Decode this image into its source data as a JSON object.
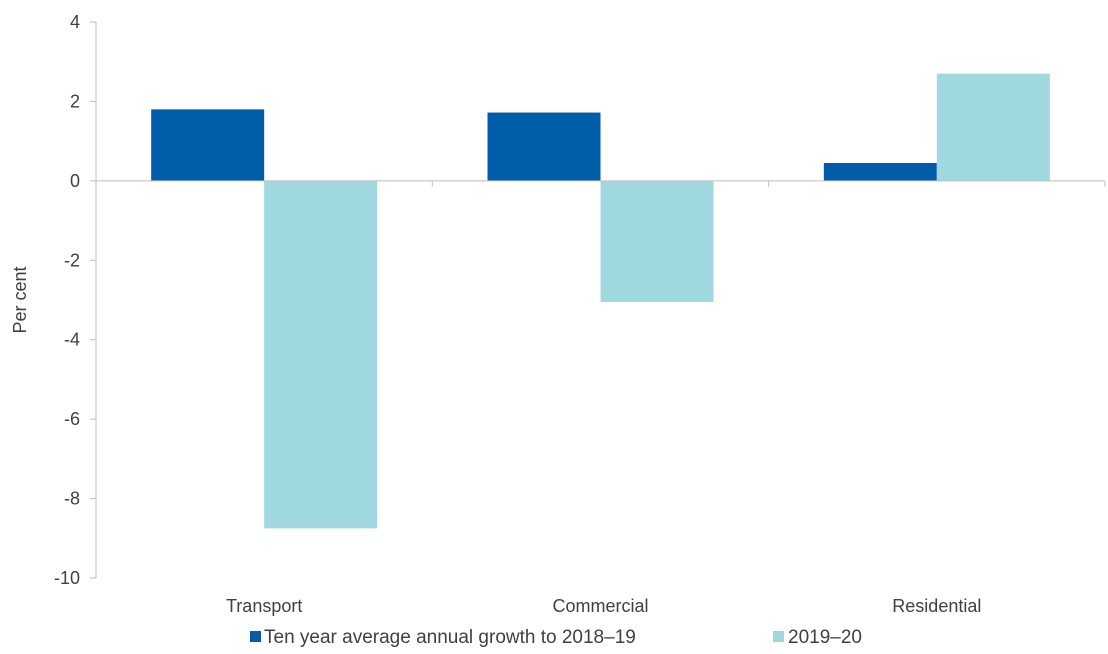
{
  "chart_data": {
    "type": "bar",
    "title": "",
    "xlabel": "",
    "ylabel": "Per cent",
    "ylim": [
      -10,
      4
    ],
    "yticks": [
      4,
      2,
      0,
      -2,
      -4,
      -6,
      -8,
      -10
    ],
    "grid": false,
    "legend_position": "bottom",
    "categories": [
      "Transport",
      "Commercial",
      "Residential"
    ],
    "series": [
      {
        "name": "Ten year average annual growth to 2018–19",
        "values": [
          1.8,
          1.72,
          0.45
        ],
        "color": "#005DAA"
      },
      {
        "name": "2019–20",
        "values": [
          -8.75,
          -3.05,
          2.7
        ],
        "color": "#9FD9DF"
      }
    ]
  }
}
